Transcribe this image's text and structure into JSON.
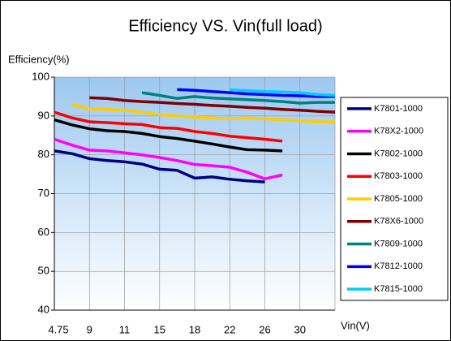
{
  "chart_data": {
    "type": "line",
    "title": "Efficiency VS. Vin(full load)",
    "y_label": "Efficiency(%)",
    "x_label": "Vin(V)",
    "categories": [
      "4.75",
      null,
      "9",
      null,
      "11",
      null,
      "15",
      null,
      "18",
      null,
      "22",
      null,
      "26",
      null,
      "30",
      null,
      null
    ],
    "ylim": [
      40,
      100
    ],
    "yticks": [
      40,
      50,
      60,
      70,
      80,
      90,
      100
    ],
    "grid": true,
    "legend": "right",
    "series": [
      {
        "name": "K7801-1000",
        "color": "#000080",
        "values": [
          81,
          80.3,
          79,
          78.5,
          78.2,
          77.6,
          76.3,
          76,
          74,
          74.3,
          73.7,
          73.3,
          73,
          null,
          null,
          null,
          null
        ]
      },
      {
        "name": "K78X2-1000",
        "color": "#ff00ff",
        "values": [
          84,
          82.5,
          81.2,
          81,
          80.5,
          80,
          79.3,
          78.5,
          77.5,
          77.2,
          76.8,
          75.5,
          73.8,
          74.8,
          null,
          null,
          null
        ]
      },
      {
        "name": "K7802-1000",
        "color": "#000000",
        "values": [
          89,
          87.7,
          86.7,
          86.2,
          86,
          85.5,
          84.7,
          84.2,
          83.5,
          82.8,
          82,
          81.3,
          81.2,
          81,
          null,
          null,
          null
        ]
      },
      {
        "name": "K7803-1000",
        "color": "#ff0000",
        "values": [
          91,
          89.5,
          88.5,
          88.3,
          88,
          87.8,
          87,
          86.8,
          86,
          85.5,
          84.8,
          84.4,
          84,
          83.5,
          null,
          null,
          null
        ]
      },
      {
        "name": "K7805-1000",
        "color": "#ffcc00",
        "values": [
          null,
          93,
          91.8,
          91.7,
          91.5,
          91,
          90.3,
          90,
          89.7,
          89.5,
          89.3,
          89.5,
          89.3,
          89,
          88.8,
          88.5,
          88.5
        ]
      },
      {
        "name": "K78X6-1000",
        "color": "#800000",
        "values": [
          null,
          null,
          94.7,
          94.5,
          94,
          93.7,
          93.5,
          93.2,
          93,
          92.7,
          92.5,
          92.2,
          92,
          91.7,
          91.5,
          91.2,
          91
        ]
      },
      {
        "name": "K7809-1000",
        "color": "#008080",
        "values": [
          null,
          null,
          null,
          null,
          null,
          96,
          95.3,
          94.5,
          95,
          94.6,
          94.4,
          94.2,
          94,
          93.7,
          93.3,
          93.5,
          93.5
        ]
      },
      {
        "name": "K7812-1000",
        "color": "#0000ff",
        "values": [
          null,
          null,
          null,
          null,
          null,
          null,
          null,
          96.8,
          96.6,
          96.3,
          96,
          95.7,
          95.5,
          95.3,
          95.2,
          95,
          95
        ]
      },
      {
        "name": "K7815-1000",
        "color": "#00ccff",
        "values": [
          null,
          null,
          null,
          null,
          null,
          null,
          null,
          null,
          null,
          null,
          96.7,
          96.5,
          96.3,
          96.2,
          96,
          95.5,
          95.3
        ]
      }
    ]
  }
}
